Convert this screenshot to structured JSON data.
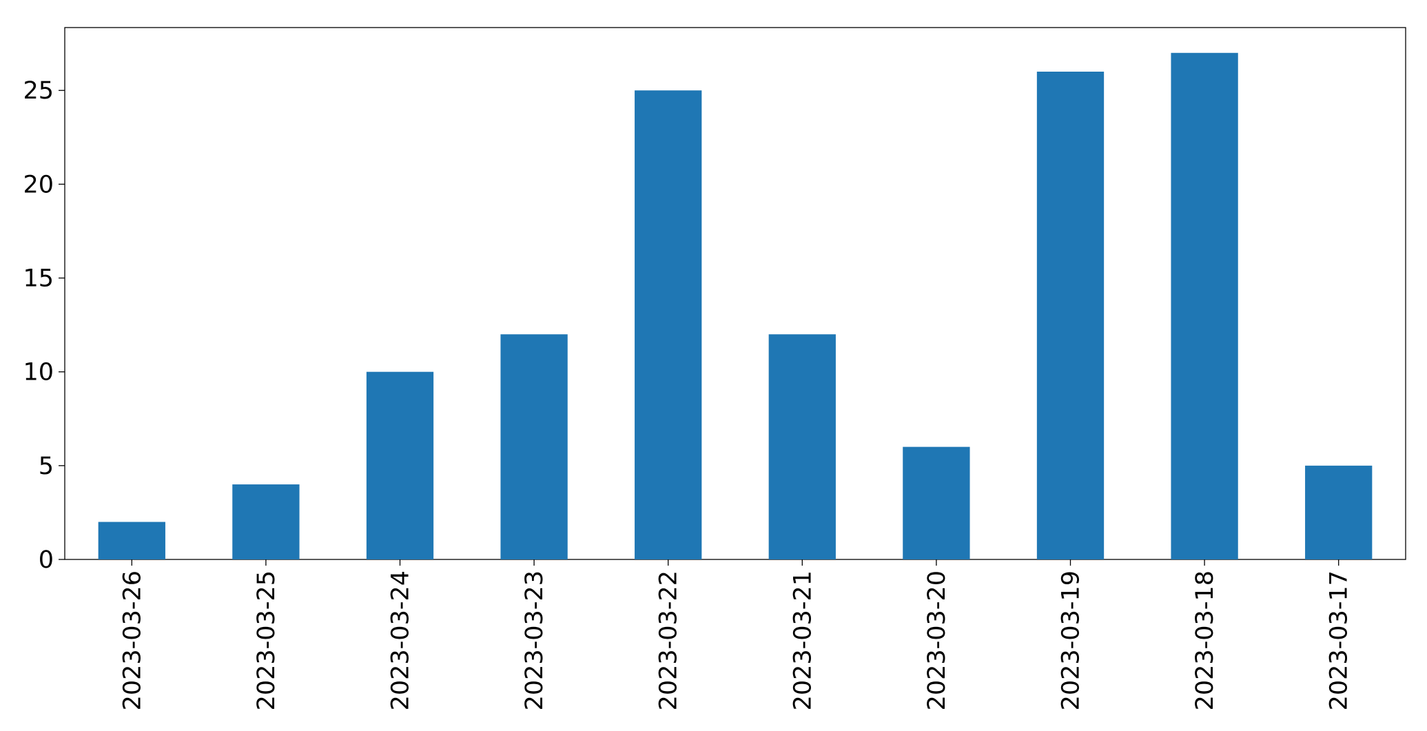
{
  "chart_data": {
    "type": "bar",
    "categories": [
      "2023-03-26",
      "2023-03-25",
      "2023-03-24",
      "2023-03-23",
      "2023-03-22",
      "2023-03-21",
      "2023-03-20",
      "2023-03-19",
      "2023-03-18",
      "2023-03-17"
    ],
    "values": [
      2,
      4,
      10,
      12,
      25,
      12,
      6,
      26,
      27,
      5
    ],
    "color": "#1f77b4",
    "ylim": [
      0,
      28.35
    ],
    "yticks": [
      0,
      5,
      10,
      15,
      20,
      25
    ],
    "grid": false
  }
}
